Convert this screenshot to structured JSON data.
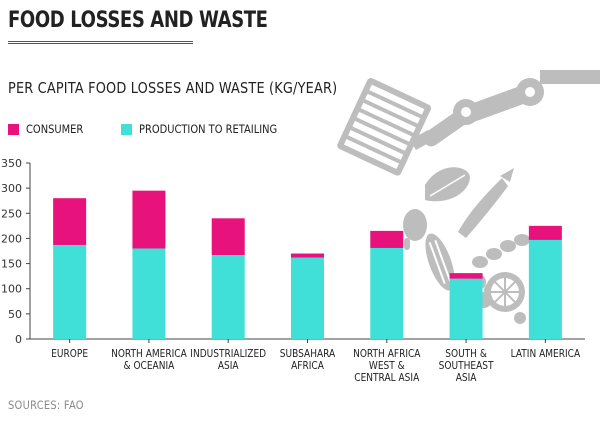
{
  "title": "FOOD LOSSES AND WASTE",
  "source": "SOURCES: FAO",
  "colors": {
    "consumer": "#e8127c",
    "production": "#40e0d8",
    "axis": "#444444",
    "deco": "#bdbdbd"
  },
  "chart_data": {
    "type": "bar",
    "stacked": true,
    "title": "PER CAPITA FOOD LOSSES AND WASTE (KG/YEAR)",
    "xlabel": "",
    "ylabel": "",
    "ylim": [
      0,
      350
    ],
    "yticks": [
      0,
      50,
      100,
      150,
      200,
      250,
      300,
      350
    ],
    "grid": false,
    "legend_position": "top-left",
    "categories": [
      [
        "EUROPE"
      ],
      [
        "NORTH AMERICA",
        "& OCEANIA"
      ],
      [
        "INDUSTRIALIZED",
        "ASIA"
      ],
      [
        "SUBSAHARA",
        "AFRICA"
      ],
      [
        "NORTH AFRICA",
        "WEST &",
        "CENTRAL ASIA"
      ],
      [
        "SOUTH &",
        "SOUTHEAST",
        "ASIA"
      ],
      [
        "LATIN AMERICA"
      ]
    ],
    "series": [
      {
        "name": "PRODUCTION TO RETAILING",
        "key": "production",
        "values": [
          187,
          180,
          167,
          162,
          181,
          120,
          197
        ]
      },
      {
        "name": "CONSUMER",
        "key": "consumer",
        "values": [
          93,
          115,
          73,
          8,
          34,
          11,
          28
        ]
      }
    ],
    "legend": [
      {
        "label": "CONSUMER",
        "key": "consumer"
      },
      {
        "label": "PRODUCTION TO RETAILING",
        "key": "production"
      }
    ]
  }
}
